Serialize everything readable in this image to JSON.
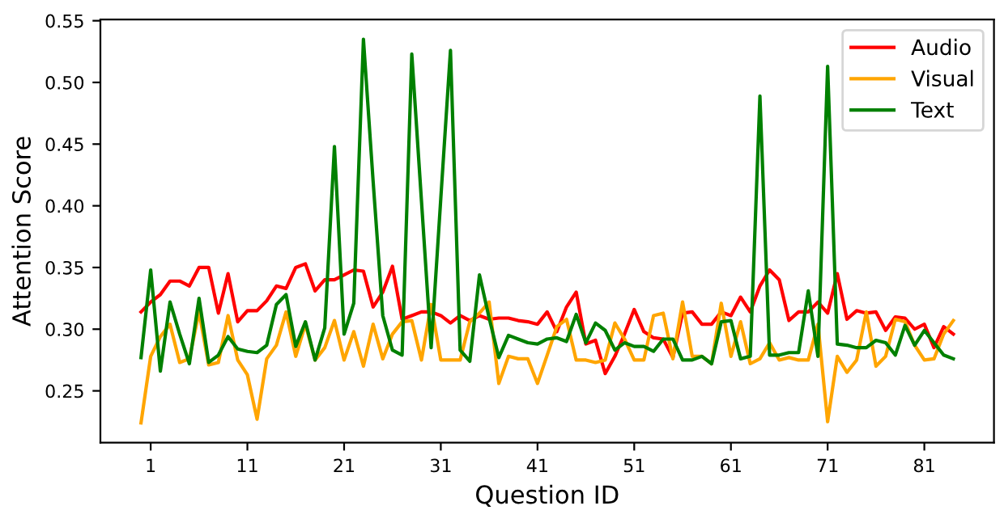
{
  "chart_data": {
    "type": "line",
    "xlabel": "Question ID",
    "ylabel": "Attention Score",
    "x": [
      0,
      1,
      2,
      3,
      4,
      5,
      6,
      7,
      8,
      9,
      10,
      11,
      12,
      13,
      14,
      15,
      16,
      17,
      18,
      19,
      20,
      21,
      22,
      23,
      24,
      25,
      26,
      27,
      28,
      29,
      30,
      31,
      32,
      33,
      34,
      35,
      36,
      37,
      38,
      39,
      40,
      41,
      42,
      43,
      44,
      45,
      46,
      47,
      48,
      49,
      50,
      51,
      52,
      53,
      54,
      55,
      56,
      57,
      58,
      59,
      60,
      61,
      62,
      63,
      64,
      65,
      66,
      67,
      68,
      69,
      70,
      71,
      72,
      73,
      74,
      75,
      76,
      77,
      78,
      79,
      80,
      81,
      82,
      83,
      84
    ],
    "series": [
      {
        "name": "Audio",
        "color": "#ff0000",
        "values": [
          0.314,
          0.322,
          0.328,
          0.339,
          0.339,
          0.335,
          0.35,
          0.35,
          0.313,
          0.345,
          0.306,
          0.315,
          0.315,
          0.323,
          0.335,
          0.333,
          0.35,
          0.353,
          0.331,
          0.34,
          0.34,
          0.344,
          0.348,
          0.347,
          0.318,
          0.33,
          0.351,
          0.308,
          0.311,
          0.314,
          0.314,
          0.311,
          0.305,
          0.311,
          0.307,
          0.311,
          0.308,
          0.309,
          0.309,
          0.307,
          0.306,
          0.304,
          0.314,
          0.298,
          0.318,
          0.33,
          0.288,
          0.291,
          0.264,
          0.278,
          0.296,
          0.316,
          0.298,
          0.293,
          0.292,
          0.277,
          0.313,
          0.314,
          0.304,
          0.304,
          0.314,
          0.311,
          0.326,
          0.314,
          0.335,
          0.348,
          0.34,
          0.307,
          0.314,
          0.314,
          0.322,
          0.313,
          0.345,
          0.308,
          0.315,
          0.313,
          0.314,
          0.299,
          0.31,
          0.309,
          0.3,
          0.304,
          0.285,
          0.302,
          0.296
        ]
      },
      {
        "name": "Visual",
        "color": "#ffa500",
        "values": [
          0.224,
          0.278,
          0.294,
          0.304,
          0.273,
          0.276,
          0.314,
          0.271,
          0.273,
          0.311,
          0.275,
          0.263,
          0.227,
          0.276,
          0.287,
          0.314,
          0.278,
          0.304,
          0.275,
          0.285,
          0.307,
          0.275,
          0.298,
          0.27,
          0.304,
          0.276,
          0.296,
          0.306,
          0.307,
          0.275,
          0.32,
          0.275,
          0.275,
          0.275,
          0.306,
          0.313,
          0.322,
          0.256,
          0.278,
          0.276,
          0.276,
          0.256,
          0.279,
          0.302,
          0.308,
          0.275,
          0.275,
          0.273,
          0.275,
          0.305,
          0.292,
          0.275,
          0.275,
          0.311,
          0.313,
          0.276,
          0.322,
          0.278,
          0.278,
          0.272,
          0.321,
          0.278,
          0.306,
          0.272,
          0.276,
          0.289,
          0.275,
          0.277,
          0.275,
          0.275,
          0.304,
          0.225,
          0.278,
          0.265,
          0.275,
          0.314,
          0.27,
          0.278,
          0.308,
          0.306,
          0.287,
          0.275,
          0.276,
          0.296,
          0.307
        ]
      },
      {
        "name": "Text",
        "color": "#008000",
        "values": [
          0.277,
          0.348,
          0.266,
          0.322,
          0.296,
          0.272,
          0.325,
          0.273,
          0.279,
          0.294,
          0.284,
          0.282,
          0.281,
          0.287,
          0.32,
          0.328,
          0.286,
          0.306,
          0.275,
          0.301,
          0.448,
          0.296,
          0.321,
          0.535,
          0.42,
          0.311,
          0.283,
          0.279,
          0.523,
          0.404,
          0.285,
          0.406,
          0.526,
          0.283,
          0.274,
          0.344,
          0.309,
          0.277,
          0.295,
          0.292,
          0.289,
          0.288,
          0.292,
          0.293,
          0.29,
          0.312,
          0.289,
          0.305,
          0.299,
          0.283,
          0.289,
          0.286,
          0.286,
          0.282,
          0.292,
          0.292,
          0.275,
          0.275,
          0.278,
          0.272,
          0.306,
          0.307,
          0.276,
          0.278,
          0.489,
          0.279,
          0.279,
          0.281,
          0.281,
          0.331,
          0.278,
          0.513,
          0.288,
          0.287,
          0.285,
          0.285,
          0.291,
          0.289,
          0.279,
          0.303,
          0.287,
          0.299,
          0.289,
          0.279,
          0.276
        ]
      }
    ],
    "xlim": [
      -4.2,
      88.2
    ],
    "ylim": [
      0.208,
      0.551
    ],
    "xticks": [
      1,
      11,
      21,
      31,
      41,
      51,
      61,
      71,
      81
    ],
    "yticks": [
      {
        "value": 0.25,
        "label": "0.25"
      },
      {
        "value": 0.3,
        "label": "0.30"
      },
      {
        "value": 0.35,
        "label": "0.35"
      },
      {
        "value": 0.4,
        "label": "0.40"
      },
      {
        "value": 0.45,
        "label": "0.45"
      },
      {
        "value": 0.5,
        "label": "0.50"
      },
      {
        "value": 0.55,
        "label": "0.55"
      }
    ],
    "legend": "top right",
    "grid": false,
    "marker": "none",
    "line_style": "solid"
  }
}
